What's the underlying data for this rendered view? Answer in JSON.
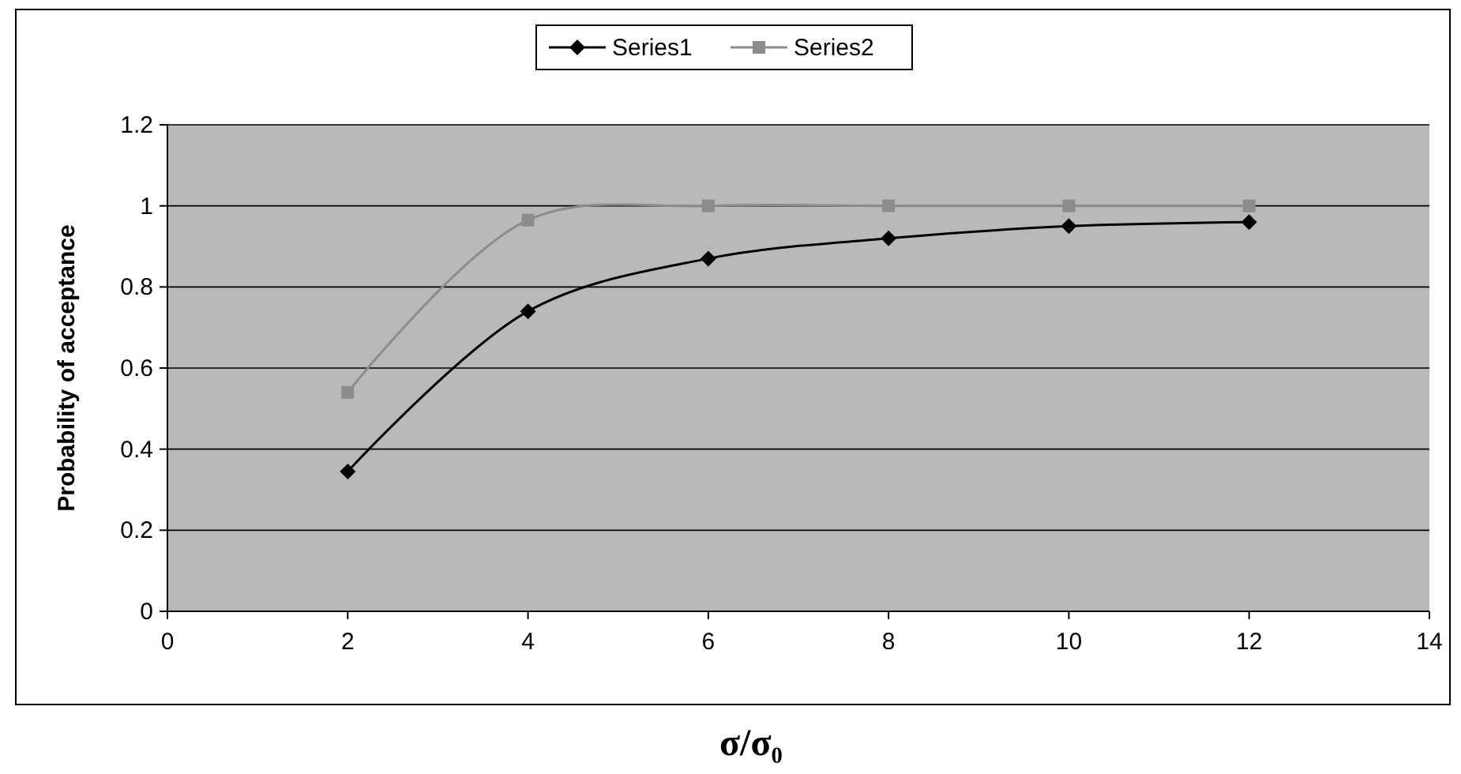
{
  "chart_data": {
    "type": "line",
    "xlabel": "σ/σ₀",
    "ylabel": "Probability of acceptance",
    "x": [
      2,
      4,
      6,
      8,
      10,
      12
    ],
    "series": [
      {
        "name": "Series1",
        "color": "#000000",
        "marker": "diamond",
        "values": [
          0.345,
          0.74,
          0.87,
          0.92,
          0.95,
          0.96
        ]
      },
      {
        "name": "Series2",
        "color": "#8c8c8c",
        "marker": "square",
        "values": [
          0.54,
          0.965,
          1.0,
          1.0,
          1.0,
          1.0
        ]
      }
    ],
    "xlim": [
      0,
      14
    ],
    "xticks": [
      0,
      2,
      4,
      6,
      8,
      10,
      12,
      14
    ],
    "ylim": [
      0,
      1.2
    ],
    "yticks": [
      0,
      0.2,
      0.4,
      0.6,
      0.8,
      1,
      1.2
    ],
    "grid": "y",
    "legend": "top"
  }
}
